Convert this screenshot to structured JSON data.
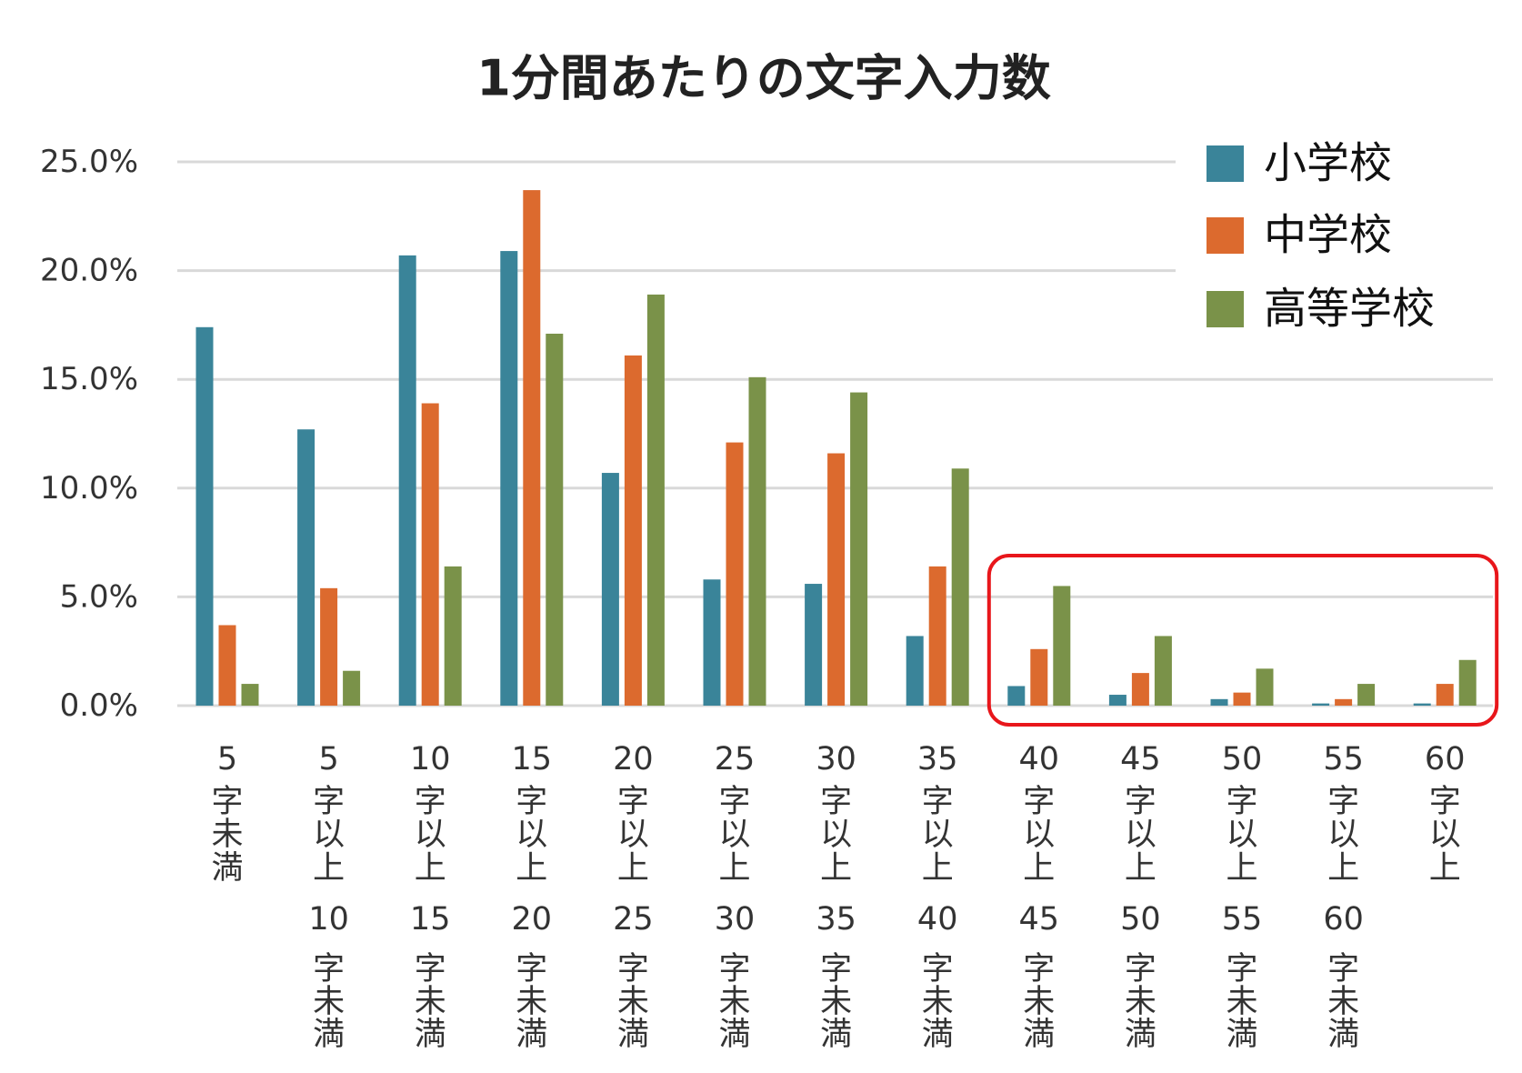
{
  "chart_data": {
    "type": "bar",
    "title": "1分間あたりの文字入力数",
    "xlabel": "",
    "ylabel": "",
    "ylim": [
      0,
      25
    ],
    "ytick_labels": [
      "0.0%",
      "5.0%",
      "10.0%",
      "15.0%",
      "20.0%",
      "25.0%"
    ],
    "grid": true,
    "legend_position": "top-right",
    "categories": [
      [
        "5",
        "字",
        "未",
        "満"
      ],
      [
        "5",
        "字",
        "以",
        "上",
        "10",
        "字",
        "未",
        "満"
      ],
      [
        "10",
        "字",
        "以",
        "上",
        "15",
        "字",
        "未",
        "満"
      ],
      [
        "15",
        "字",
        "以",
        "上",
        "20",
        "字",
        "未",
        "満"
      ],
      [
        "20",
        "字",
        "以",
        "上",
        "25",
        "字",
        "未",
        "満"
      ],
      [
        "25",
        "字",
        "以",
        "上",
        "30",
        "字",
        "未",
        "満"
      ],
      [
        "30",
        "字",
        "以",
        "上",
        "35",
        "字",
        "未",
        "満"
      ],
      [
        "35",
        "字",
        "以",
        "上",
        "40",
        "字",
        "未",
        "満"
      ],
      [
        "40",
        "字",
        "以",
        "上",
        "45",
        "字",
        "未",
        "満"
      ],
      [
        "45",
        "字",
        "以",
        "上",
        "50",
        "字",
        "未",
        "満"
      ],
      [
        "50",
        "字",
        "以",
        "上",
        "55",
        "字",
        "未",
        "満"
      ],
      [
        "55",
        "字",
        "以",
        "上",
        "60",
        "字",
        "未",
        "満"
      ],
      [
        "60",
        "字",
        "以",
        "上"
      ]
    ],
    "series": [
      {
        "name": "小学校",
        "color": "#3a8499",
        "values": [
          17.4,
          12.7,
          20.7,
          20.9,
          10.7,
          5.8,
          5.6,
          3.2,
          0.9,
          0.5,
          0.3,
          0.1,
          0.1
        ]
      },
      {
        "name": "中学校",
        "color": "#dc6a2e",
        "values": [
          3.7,
          5.4,
          13.9,
          23.7,
          16.1,
          12.1,
          11.6,
          6.4,
          2.6,
          1.5,
          0.6,
          0.3,
          1.0
        ]
      },
      {
        "name": "高等学校",
        "color": "#7a9249",
        "values": [
          1.0,
          1.6,
          6.4,
          17.1,
          18.9,
          15.1,
          14.4,
          10.9,
          5.5,
          3.2,
          1.7,
          1.0,
          2.1
        ]
      }
    ],
    "annotation": {
      "type": "highlight-box",
      "color": "#e8161b",
      "categories_from": 8,
      "categories_to": 12
    }
  }
}
